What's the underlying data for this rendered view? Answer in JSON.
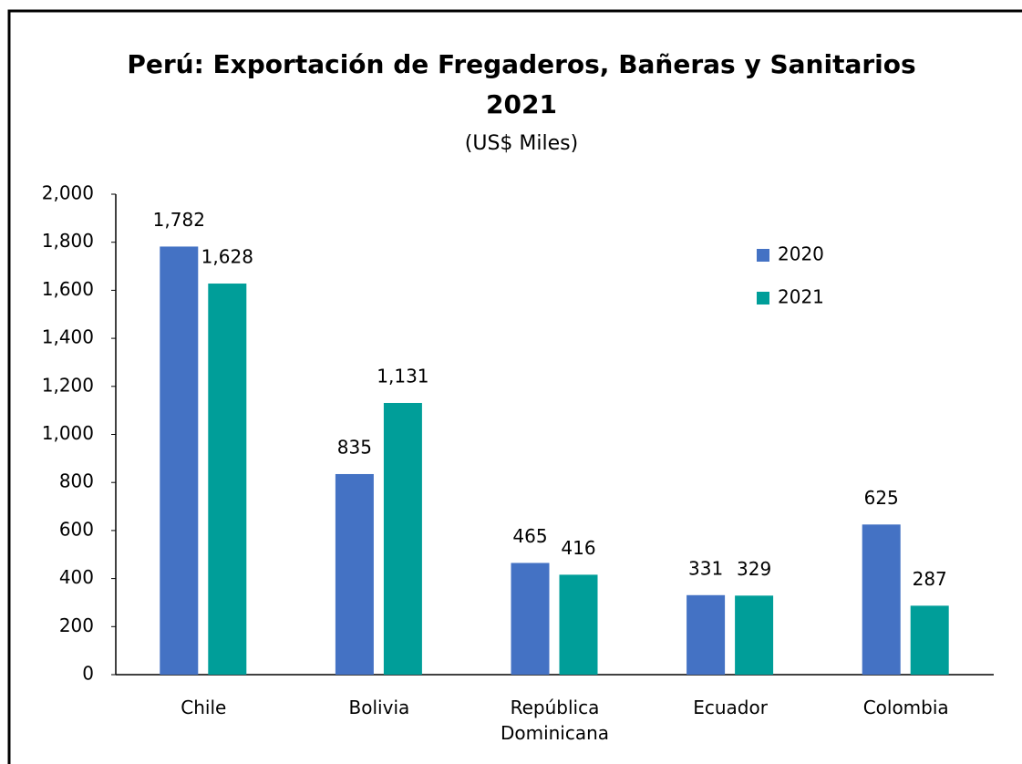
{
  "chart_data": {
    "type": "bar",
    "title": [
      "Perú: Exportación de Fregaderos, Bañeras y Sanitarios",
      "2021"
    ],
    "subtitle": "(US$ Miles)",
    "categories": [
      "Chile",
      "Bolivia",
      "República Dominicana",
      "Ecuador",
      "Colombia"
    ],
    "series": [
      {
        "name": "2020",
        "color": "#4472c4",
        "values": [
          1782,
          835,
          465,
          331,
          625
        ],
        "value_labels": [
          "1,782",
          "835",
          "465",
          "331",
          "625"
        ]
      },
      {
        "name": "2021",
        "color": "#009e99",
        "values": [
          1628,
          1131,
          416,
          329,
          287
        ],
        "value_labels": [
          "1,628",
          "1,131",
          "416",
          "329",
          "287"
        ]
      }
    ],
    "ylim": [
      0,
      2000
    ],
    "yticks": [
      0,
      200,
      400,
      600,
      800,
      {
        "value": 1000,
        "label": "1,000"
      },
      {
        "value": 1200,
        "label": "1,200"
      },
      {
        "value": 1400,
        "label": "1,400"
      },
      {
        "value": 1600,
        "label": "1,600"
      },
      {
        "value": 1800,
        "label": "1,800"
      },
      {
        "value": 2000,
        "label": "2,000"
      }
    ],
    "grid": false,
    "legend": "upper right"
  }
}
